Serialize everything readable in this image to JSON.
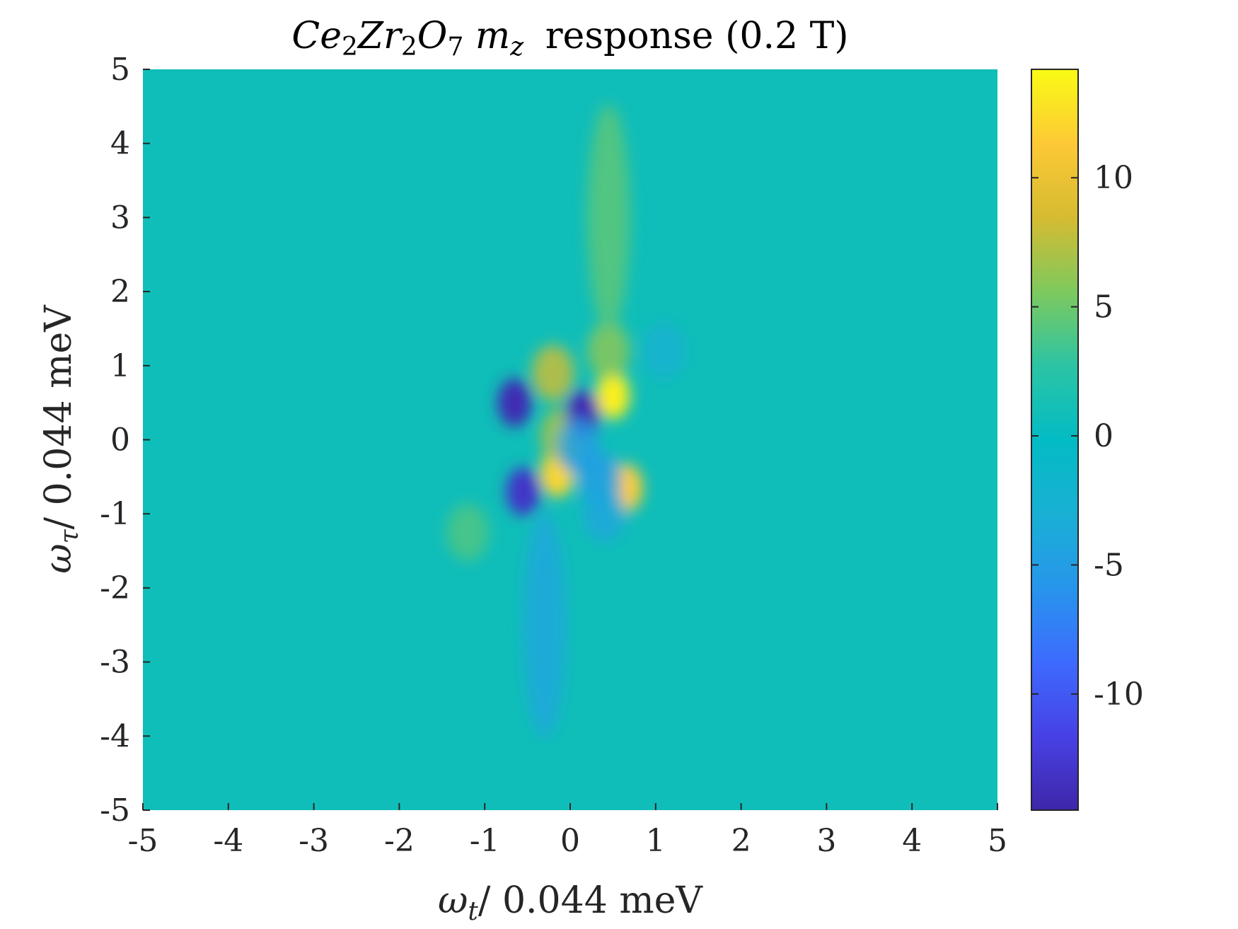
{
  "chart_data": {
    "type": "heatmap",
    "title": {
      "formula": [
        {
          "text": "Ce",
          "style": "italic"
        },
        {
          "text": "2",
          "style": "sub"
        },
        {
          "text": "Zr",
          "style": "italic"
        },
        {
          "text": "2",
          "style": "sub"
        },
        {
          "text": "O",
          "style": "italic"
        },
        {
          "text": "7",
          "style": "sub"
        },
        {
          "text": " m",
          "style": "italic"
        },
        {
          "text": "z",
          "style": "italic-sub"
        }
      ],
      "suffix": "response (0.2 T)"
    },
    "xlabel": {
      "symbol": "ω",
      "sub": "t",
      "unit": "/ 0.044 meV"
    },
    "ylabel": {
      "symbol": "ω",
      "sub": "τ",
      "unit": "/ 0.044 meV"
    },
    "xlim": [
      -5,
      5
    ],
    "ylim": [
      -5,
      5
    ],
    "xticks": [
      "-5",
      "-4",
      "-3",
      "-2",
      "-1",
      "0",
      "1",
      "2",
      "3",
      "4",
      "5"
    ],
    "yticks": [
      "-5",
      "-4",
      "-3",
      "-2",
      "-1",
      "0",
      "1",
      "2",
      "3",
      "4",
      "5"
    ],
    "colorbar": {
      "colormap": "parula",
      "clim": [
        -14.5,
        14.2
      ],
      "ticks": [
        "-10",
        "-5",
        "0",
        "5",
        "10"
      ],
      "tick_values": [
        -10,
        -5,
        0,
        5,
        10
      ]
    },
    "features": [
      {
        "x": 0.5,
        "y": 0.6,
        "value": 13.5
      },
      {
        "x": -0.15,
        "y": -0.45,
        "value": 12.0
      },
      {
        "x": 0.65,
        "y": -0.65,
        "value": 11.5
      },
      {
        "x": -0.2,
        "y": 0.9,
        "value": 8.0
      },
      {
        "x": -0.1,
        "y": 0.05,
        "value": 7.0
      },
      {
        "x": 0.45,
        "y": 1.2,
        "value": 6.0
      },
      {
        "x": -1.2,
        "y": -1.25,
        "value": 4.0
      },
      {
        "x": 0.45,
        "y": 3.0,
        "value": 4.5
      },
      {
        "x": -0.65,
        "y": 0.5,
        "value": -14.0
      },
      {
        "x": 0.15,
        "y": 0.35,
        "value": -14.0
      },
      {
        "x": -0.55,
        "y": -0.7,
        "value": -13.0
      },
      {
        "x": 0.1,
        "y": -0.1,
        "value": -5.0
      },
      {
        "x": 0.35,
        "y": -0.55,
        "value": -5.0
      },
      {
        "x": 0.4,
        "y": -1.0,
        "value": -4.0
      },
      {
        "x": -0.3,
        "y": -2.5,
        "value": -4.0
      },
      {
        "x": 1.1,
        "y": 1.2,
        "value": -2.5
      }
    ]
  }
}
